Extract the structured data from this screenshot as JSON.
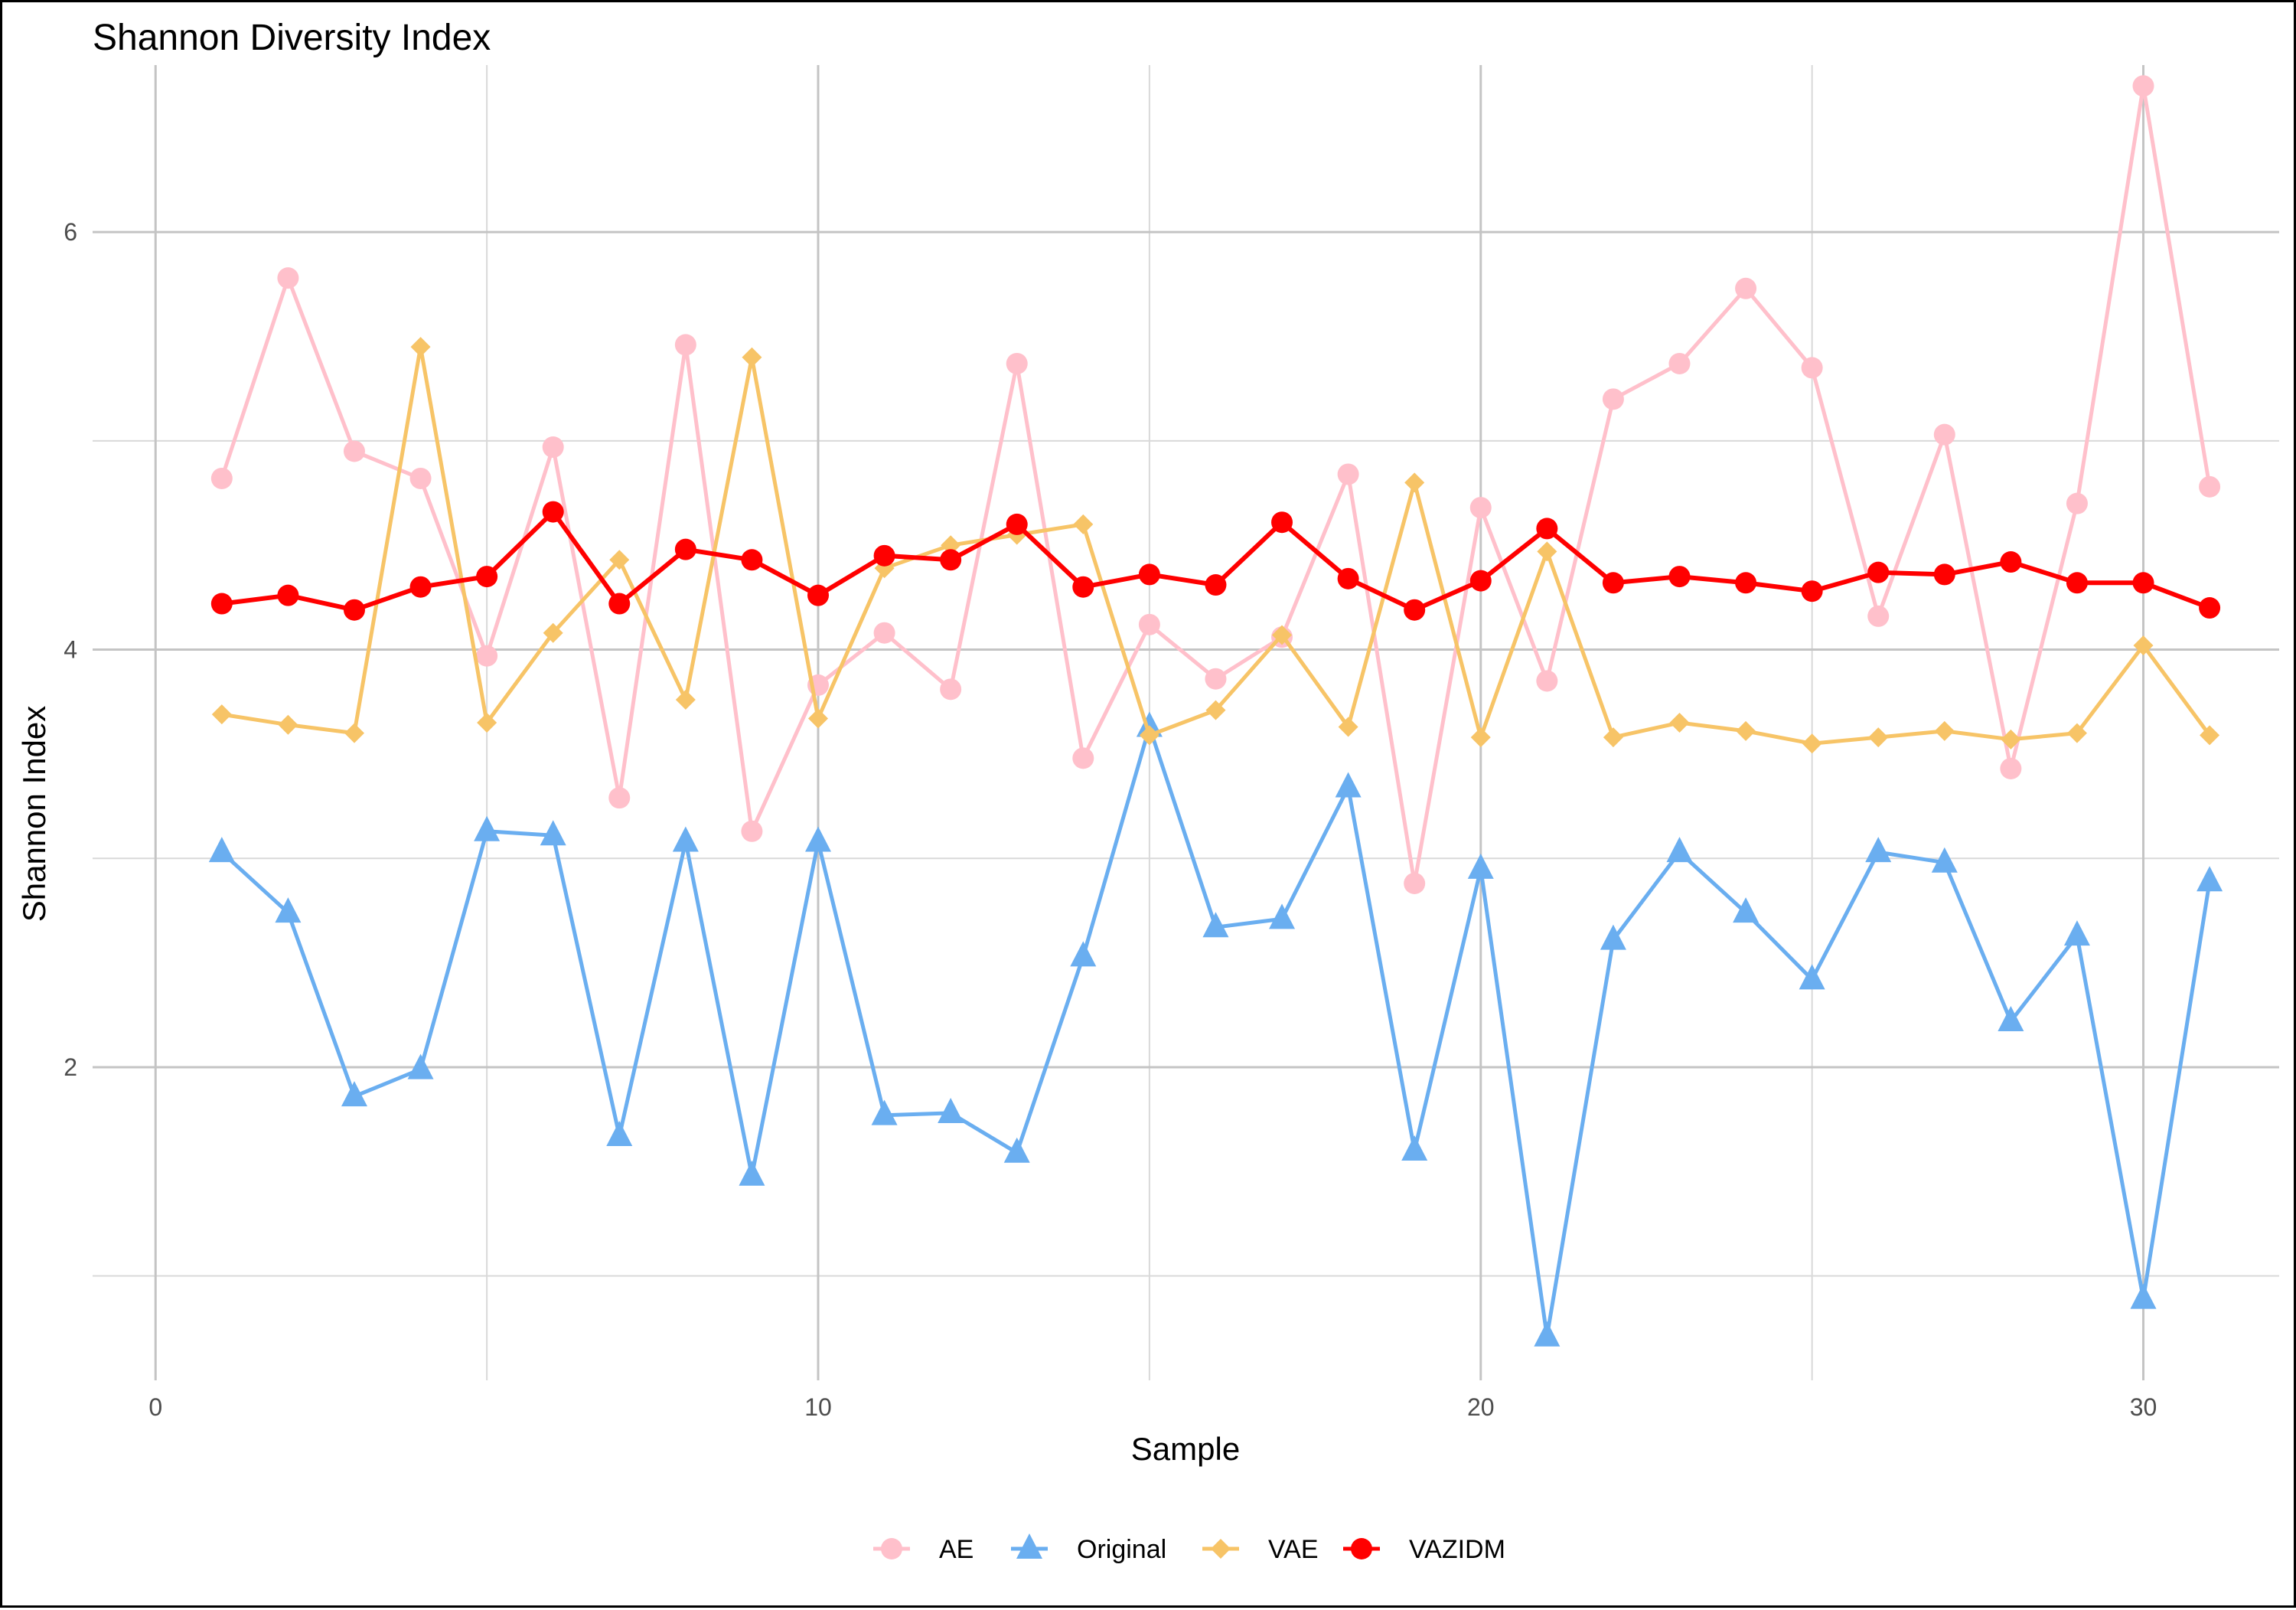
{
  "chart_data": {
    "type": "line",
    "title": "Shannon Diversity Index",
    "xlabel": "Sample",
    "ylabel": "Shannon Index",
    "xlim": [
      -0.95,
      32.05
    ],
    "ylim": [
      0.5,
      6.8
    ],
    "x_ticks": [
      0,
      10,
      20,
      30
    ],
    "x_minor_ticks": [
      5,
      15,
      25
    ],
    "y_ticks": [
      2,
      4,
      6
    ],
    "y_minor_ticks": [
      1,
      3,
      5
    ],
    "grid": true,
    "legend_position": "bottom",
    "x": [
      1,
      2,
      3,
      4,
      5,
      6,
      7,
      8,
      9,
      10,
      11,
      12,
      13,
      14,
      15,
      16,
      17,
      18,
      19,
      20,
      21,
      22,
      23,
      24,
      25,
      26,
      27,
      28,
      29,
      30,
      31
    ],
    "series": [
      {
        "name": "AE",
        "color": "#ffc0cb",
        "marker": "circle",
        "values": [
          4.82,
          5.78,
          4.95,
          4.82,
          3.97,
          4.97,
          3.29,
          5.46,
          3.13,
          3.83,
          4.08,
          3.81,
          5.37,
          3.48,
          4.12,
          3.86,
          4.06,
          4.84,
          2.88,
          4.68,
          3.85,
          5.2,
          5.37,
          5.73,
          5.35,
          4.16,
          5.03,
          3.43,
          4.7,
          6.7,
          4.78
        ]
      },
      {
        "name": "Original",
        "color": "#6aaef0",
        "marker": "triangle",
        "values": [
          3.03,
          2.74,
          1.86,
          1.99,
          3.13,
          3.11,
          1.67,
          3.08,
          1.48,
          3.08,
          1.77,
          1.78,
          1.59,
          2.53,
          3.63,
          2.67,
          2.71,
          3.34,
          1.6,
          2.95,
          0.71,
          2.61,
          3.03,
          2.74,
          2.42,
          3.03,
          2.98,
          2.22,
          2.63,
          0.89,
          2.89
        ]
      },
      {
        "name": "VAE",
        "color": "#f7c467",
        "marker": "diamond",
        "values": [
          3.69,
          3.64,
          3.6,
          5.45,
          3.65,
          4.08,
          4.43,
          3.76,
          5.4,
          3.67,
          4.39,
          4.5,
          4.55,
          4.6,
          3.59,
          3.71,
          4.07,
          3.63,
          4.8,
          3.58,
          4.47,
          3.58,
          3.65,
          3.61,
          3.55,
          3.58,
          3.61,
          3.57,
          3.6,
          4.02,
          3.59
        ]
      },
      {
        "name": "VAZIDM",
        "color": "#ff0000",
        "marker": "circle",
        "values": [
          4.22,
          4.26,
          4.19,
          4.3,
          4.35,
          4.66,
          4.22,
          4.48,
          4.43,
          4.26,
          4.45,
          4.43,
          4.6,
          4.3,
          4.36,
          4.31,
          4.61,
          4.34,
          4.19,
          4.33,
          4.58,
          4.32,
          4.35,
          4.32,
          4.28,
          4.37,
          4.36,
          4.42,
          4.32,
          4.32,
          4.2
        ]
      }
    ]
  }
}
